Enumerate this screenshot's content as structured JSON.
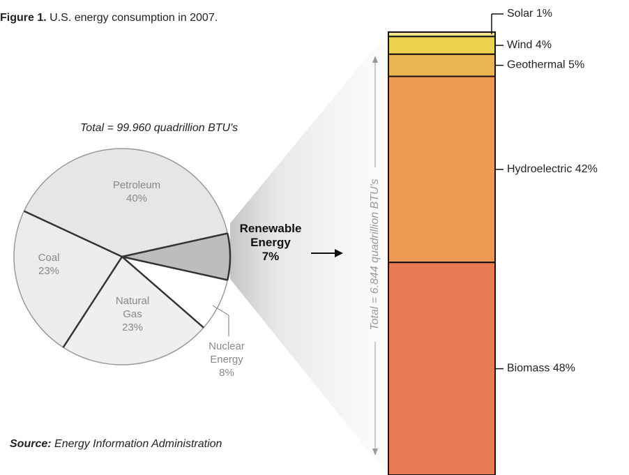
{
  "figure": {
    "label": "Figure 1.",
    "caption": "U.S. energy consumption in 2007."
  },
  "source": {
    "label": "Source:",
    "text": "Energy Information Administration"
  },
  "chart_data": [
    {
      "type": "pie",
      "subtitle": "Total = 99.960 quadrillion BTU's",
      "categories": [
        "Renewable Energy",
        "Nuclear Energy",
        "Natural Gas",
        "Coal",
        "Petroleum"
      ],
      "values": [
        7,
        8,
        23,
        23,
        40
      ],
      "value_labels": [
        "7%",
        "8%",
        "23%",
        "23%",
        "40%"
      ],
      "colors": [
        "#bdbdbd",
        "#ffffff",
        "#efefef",
        "#ececec",
        "#e6e6e6"
      ]
    },
    {
      "type": "stacked-bar",
      "subtitle": "Total = 6.844 quadrillion BTU's",
      "categories": [
        "Solar",
        "Wind",
        "Geothermal",
        "Hydroelectric",
        "Biomass"
      ],
      "values": [
        1,
        4,
        5,
        42,
        48
      ],
      "value_labels": [
        "1%",
        "4%",
        "5%",
        "42%",
        "48%"
      ],
      "colors": [
        "#f4e38a",
        "#ecd24e",
        "#ebb556",
        "#ee9a55",
        "#ea7a55"
      ]
    }
  ]
}
